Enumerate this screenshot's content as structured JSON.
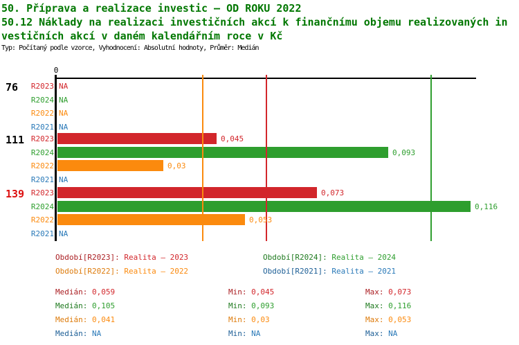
{
  "header": {
    "line1": "50. Příprava a realizace investic – OD ROKU 2022",
    "line2": "50.12 Náklady na realizaci investičních akcí k finančnímu objemu realizovaných in",
    "line3": "vestičních akcí v daném kalendářním roce v Kč",
    "subtitle": "Typ: Počítaný podle vzorce, Vyhodnocení: Absolutní hodnoty, Průměr: Medián",
    "title_color": "#007700"
  },
  "axis": {
    "zero_tick_label": "0"
  },
  "chart_data": {
    "type": "bar",
    "orientation": "horizontal",
    "title": "50.12 Náklady na realizaci investičních akcí k finančnímu objemu realizovaných investičních akcí v daném kalendářním roce v Kč",
    "xlabel": "",
    "ylabel": "",
    "xlim": [
      0,
      0.117
    ],
    "na_text": "NA",
    "series_colors": {
      "R2023": "#d2262b",
      "R2024": "#2e9e2e",
      "R2022": "#fb8a0e",
      "R2021": "#2979b8"
    },
    "groups": [
      {
        "label": "76",
        "label_color": "#000000",
        "rows": [
          {
            "series": "R2023",
            "value": null,
            "display": "NA"
          },
          {
            "series": "R2024",
            "value": null,
            "display": "NA"
          },
          {
            "series": "R2022",
            "value": null,
            "display": "NA"
          },
          {
            "series": "R2021",
            "value": null,
            "display": "NA"
          }
        ]
      },
      {
        "label": "111",
        "label_color": "#000000",
        "rows": [
          {
            "series": "R2023",
            "value": 0.045,
            "display": "0,045"
          },
          {
            "series": "R2024",
            "value": 0.093,
            "display": "0,093"
          },
          {
            "series": "R2022",
            "value": 0.03,
            "display": "0,03"
          },
          {
            "series": "R2021",
            "value": null,
            "display": "NA"
          }
        ]
      },
      {
        "label": "139",
        "label_color": "#dd1111",
        "rows": [
          {
            "series": "R2023",
            "value": 0.073,
            "display": "0,073"
          },
          {
            "series": "R2024",
            "value": 0.116,
            "display": "0,116"
          },
          {
            "series": "R2022",
            "value": 0.053,
            "display": "0,053"
          },
          {
            "series": "R2021",
            "value": null,
            "display": "NA"
          }
        ]
      }
    ],
    "median_markers": [
      {
        "series": "R2023",
        "value": 0.059,
        "color": "#d2262b"
      },
      {
        "series": "R2024",
        "value": 0.105,
        "color": "#2e9e2e"
      },
      {
        "series": "R2022",
        "value": 0.041,
        "color": "#fb8a0e"
      }
    ]
  },
  "legend": {
    "items": [
      {
        "series": "R2023",
        "prefix": "Období[R2023]:",
        "text": "Realita – 2023",
        "color": "#d2262b",
        "prefix_color": "#aa1e22"
      },
      {
        "series": "R2024",
        "prefix": "Období[R2024]:",
        "text": "Realita – 2024",
        "color": "#2e9e2e",
        "prefix_color": "#1f7a1f"
      },
      {
        "series": "R2022",
        "prefix": "Období[R2022]:",
        "text": "Realita – 2022",
        "color": "#fb8a0e",
        "prefix_color": "#dd7a0a"
      },
      {
        "series": "R2021",
        "prefix": "Období[R2021]:",
        "text": "Realita – 2021",
        "color": "#2979b8",
        "prefix_color": "#1d5f96"
      }
    ]
  },
  "stats": {
    "median_label": "Medián:",
    "min_label": "Min:",
    "max_label": "Max:",
    "rows": [
      {
        "series": "R2023",
        "color": "#d2262b",
        "label_color": "#aa1e22",
        "median": "0,059",
        "min": "0,045",
        "max": "0,073"
      },
      {
        "series": "R2024",
        "color": "#2e9e2e",
        "label_color": "#1f7a1f",
        "median": "0,105",
        "min": "0,093",
        "max": "0,116"
      },
      {
        "series": "R2022",
        "color": "#fb8a0e",
        "label_color": "#dd7a0a",
        "median": "0,041",
        "min": "0,03",
        "max": "0,053"
      },
      {
        "series": "R2021",
        "color": "#2979b8",
        "label_color": "#1d5f96",
        "median": "NA",
        "min": "NA",
        "max": "NA"
      }
    ]
  }
}
